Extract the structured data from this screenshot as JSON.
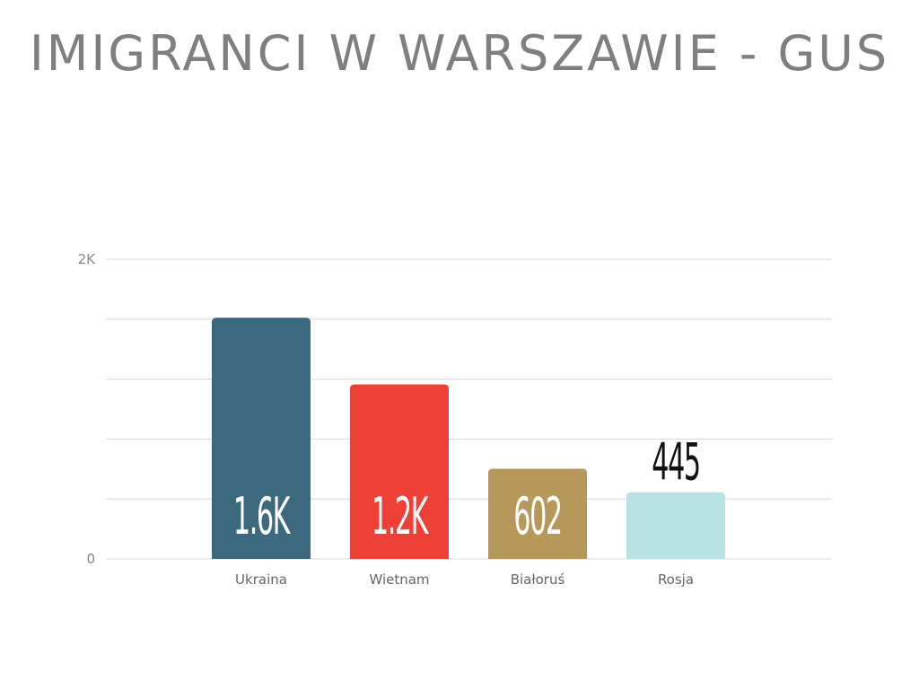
{
  "title": "IMIGRANCI W WARSZAWIE - GUS",
  "chart_data": {
    "type": "bar",
    "title": "IMIGRANCI W WARSZAWIE - GUS",
    "xlabel": "",
    "ylabel": "",
    "categories": [
      "Ukraina",
      "Wietnam",
      "Białoruś",
      "Rosja"
    ],
    "values": [
      1610,
      1165,
      602,
      445
    ],
    "data_labels": [
      "1.6K",
      "1.2K",
      "602",
      "445"
    ],
    "colors": [
      "#3d697e",
      "#ee4036",
      "#b5985a",
      "#b9e2e4"
    ],
    "data_label_colors": [
      "#ffffff",
      "#ffffff",
      "#ffffff",
      "#111111"
    ],
    "data_label_position": [
      "inside",
      "inside",
      "inside",
      "above"
    ],
    "ylim": [
      0,
      2000
    ],
    "yticks": [
      {
        "value": 0,
        "label": "0"
      },
      {
        "value": 2000,
        "label": "2K"
      }
    ],
    "gridlines": [
      0,
      400,
      800,
      1200,
      1600,
      2000
    ],
    "grid": true,
    "legend": "none"
  }
}
